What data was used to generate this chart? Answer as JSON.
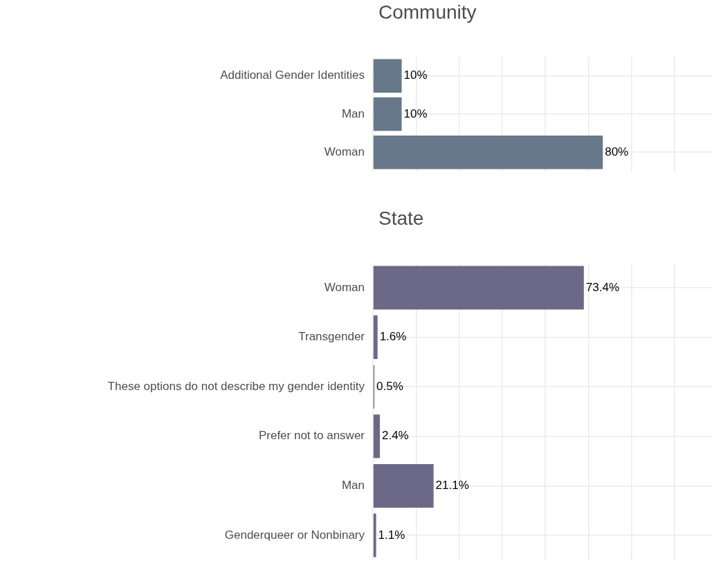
{
  "chart_data": [
    {
      "type": "bar",
      "title": "Community",
      "orientation": "horizontal",
      "categories": [
        "Additional Gender Identities",
        "Man",
        "Woman"
      ],
      "values": [
        10,
        10,
        80
      ],
      "value_labels": [
        "10%",
        "10%",
        "80%"
      ],
      "color": "#66788a",
      "xlim": [
        0,
        118
      ],
      "xticks": [
        {
          "value": 0,
          "label": null
        },
        {
          "value": 15,
          "label": null
        },
        {
          "value": 30,
          "label": null
        },
        {
          "value": 45,
          "label": null
        },
        {
          "value": 60,
          "label": null
        },
        {
          "value": 75,
          "label": null
        },
        {
          "value": 90,
          "label": null
        },
        {
          "value": 105,
          "label": null
        }
      ],
      "grid": true,
      "tick_labels": "y"
    },
    {
      "type": "bar",
      "title": "State",
      "orientation": "horizontal",
      "categories": [
        "Woman",
        "Transgender",
        "These options do not describe my gender identity",
        "Prefer not to answer",
        "Man",
        "Genderqueer or Nonbinary"
      ],
      "values": [
        73.4,
        1.6,
        0.5,
        2.4,
        21.1,
        1.1
      ],
      "value_labels": [
        "73.4%",
        "1.6%",
        "0.5%",
        "2.4%",
        "21.1%",
        "1.1%"
      ],
      "color": "#6c6887",
      "xlim": [
        0,
        118
      ],
      "xticks": [
        {
          "value": 0,
          "label": null
        },
        {
          "value": 15,
          "label": null
        },
        {
          "value": 30,
          "label": null
        },
        {
          "value": 45,
          "label": null
        },
        {
          "value": 60,
          "label": null
        },
        {
          "value": 75,
          "label": null
        },
        {
          "value": 90,
          "label": null
        },
        {
          "value": 105,
          "label": null
        }
      ],
      "grid": true,
      "tick_labels": "y"
    }
  ]
}
